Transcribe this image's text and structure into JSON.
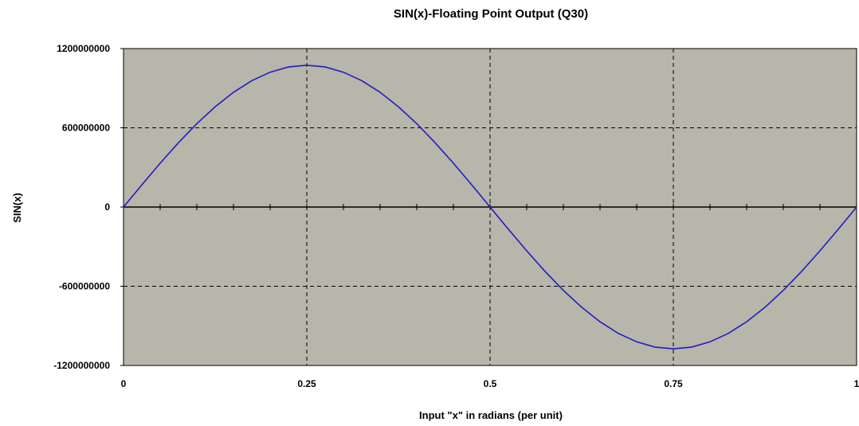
{
  "colors": {
    "plot_background": "#b8b5aa",
    "series_line": "#1f1fbf",
    "grid": "#000000",
    "axis": "#000000"
  },
  "chart_data": {
    "type": "line",
    "title": "SIN(x)-Floating Point Output (Q30)",
    "xlabel": "Input \"x\" in radians (per unit)",
    "ylabel": "SIN(x)",
    "xlim": [
      0,
      1
    ],
    "ylim": [
      -1200000000,
      1200000000
    ],
    "x_ticks": [
      0,
      0.25,
      0.5,
      0.75,
      1
    ],
    "x_tick_labels": [
      "0",
      "0.25",
      "0.5",
      "0.75",
      "1"
    ],
    "y_ticks": [
      -1200000000,
      -600000000,
      0,
      600000000,
      1200000000
    ],
    "y_tick_labels": [
      "-1200000000",
      "-600000000",
      "0",
      "600000000",
      "1200000000"
    ],
    "grid": true,
    "legend": "none",
    "series": [
      {
        "x": [
          0,
          0.025,
          0.05,
          0.075,
          0.1,
          0.125,
          0.15,
          0.175,
          0.2,
          0.225,
          0.25,
          0.275,
          0.3,
          0.325,
          0.35,
          0.375,
          0.4,
          0.425,
          0.45,
          0.475,
          0.5,
          0.525,
          0.55,
          0.575,
          0.6,
          0.625,
          0.65,
          0.675,
          0.7,
          0.725,
          0.75,
          0.775,
          0.8,
          0.825,
          0.85,
          0.875,
          0.9,
          0.925,
          0.95,
          0.975,
          1
        ],
        "y": [
          0,
          167970000,
          331800000,
          487480000,
          631120000,
          759250000,
          868700000,
          956720000,
          1021190000,
          1060500000,
          1073740000,
          1060500000,
          1021190000,
          956720000,
          868700000,
          759250000,
          631120000,
          487480000,
          331800000,
          167970000,
          0,
          -167970000,
          -331800000,
          -487480000,
          -631120000,
          -759250000,
          -868700000,
          -956720000,
          -1021190000,
          -1060500000,
          -1073740000,
          -1060500000,
          -1021190000,
          -956720000,
          -868700000,
          -759250000,
          -631120000,
          -487480000,
          -331800000,
          -167970000,
          0
        ]
      }
    ]
  }
}
